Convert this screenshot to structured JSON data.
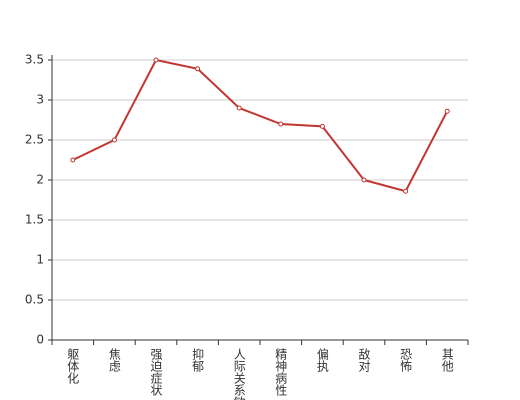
{
  "chart_data": {
    "type": "line",
    "categories": [
      "躯体化",
      "焦虑",
      "强迫症状",
      "抑郁",
      "人际关系敏感",
      "精神病性",
      "偏执",
      "敌对",
      "恐怖",
      "其他"
    ],
    "values": [
      2.25,
      2.5,
      3.5,
      3.39,
      2.9,
      2.7,
      2.67,
      2.0,
      1.86,
      2.86
    ],
    "color": "#c23531",
    "ylim": [
      0,
      3.5
    ],
    "yticks": [
      0,
      0.5,
      1,
      1.5,
      2,
      2.5,
      3,
      3.5
    ],
    "grid": true
  }
}
